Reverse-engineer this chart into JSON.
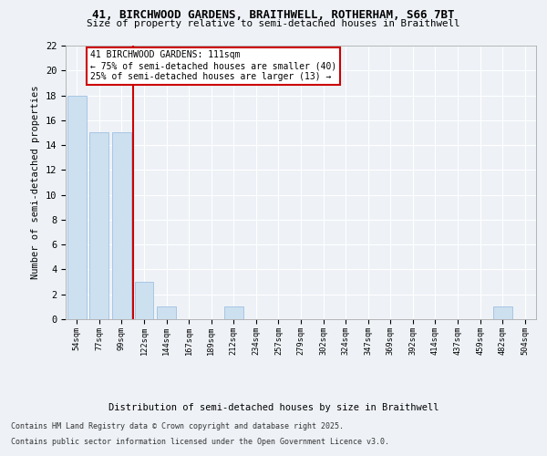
{
  "title1": "41, BIRCHWOOD GARDENS, BRAITHWELL, ROTHERHAM, S66 7BT",
  "title2": "Size of property relative to semi-detached houses in Braithwell",
  "xlabel": "Distribution of semi-detached houses by size in Braithwell",
  "ylabel": "Number of semi-detached properties",
  "categories": [
    "54sqm",
    "77sqm",
    "99sqm",
    "122sqm",
    "144sqm",
    "167sqm",
    "189sqm",
    "212sqm",
    "234sqm",
    "257sqm",
    "279sqm",
    "302sqm",
    "324sqm",
    "347sqm",
    "369sqm",
    "392sqm",
    "414sqm",
    "437sqm",
    "459sqm",
    "482sqm",
    "504sqm"
  ],
  "values": [
    18,
    15,
    15,
    3,
    1,
    0,
    0,
    1,
    0,
    0,
    0,
    0,
    0,
    0,
    0,
    0,
    0,
    0,
    0,
    1,
    0
  ],
  "bar_color": "#cce0f0",
  "bar_edge_color": "#a0c0e0",
  "vline_x": 2.5,
  "vline_color": "#cc0000",
  "annotation_text": "41 BIRCHWOOD GARDENS: 111sqm\n← 75% of semi-detached houses are smaller (40)\n25% of semi-detached houses are larger (13) →",
  "annotation_box_color": "#cc0000",
  "ylim": [
    0,
    22
  ],
  "yticks": [
    0,
    2,
    4,
    6,
    8,
    10,
    12,
    14,
    16,
    18,
    20,
    22
  ],
  "footer1": "Contains HM Land Registry data © Crown copyright and database right 2025.",
  "footer2": "Contains public sector information licensed under the Open Government Licence v3.0.",
  "bg_color": "#eef2f7",
  "plot_bg_color": "#eef2f7"
}
